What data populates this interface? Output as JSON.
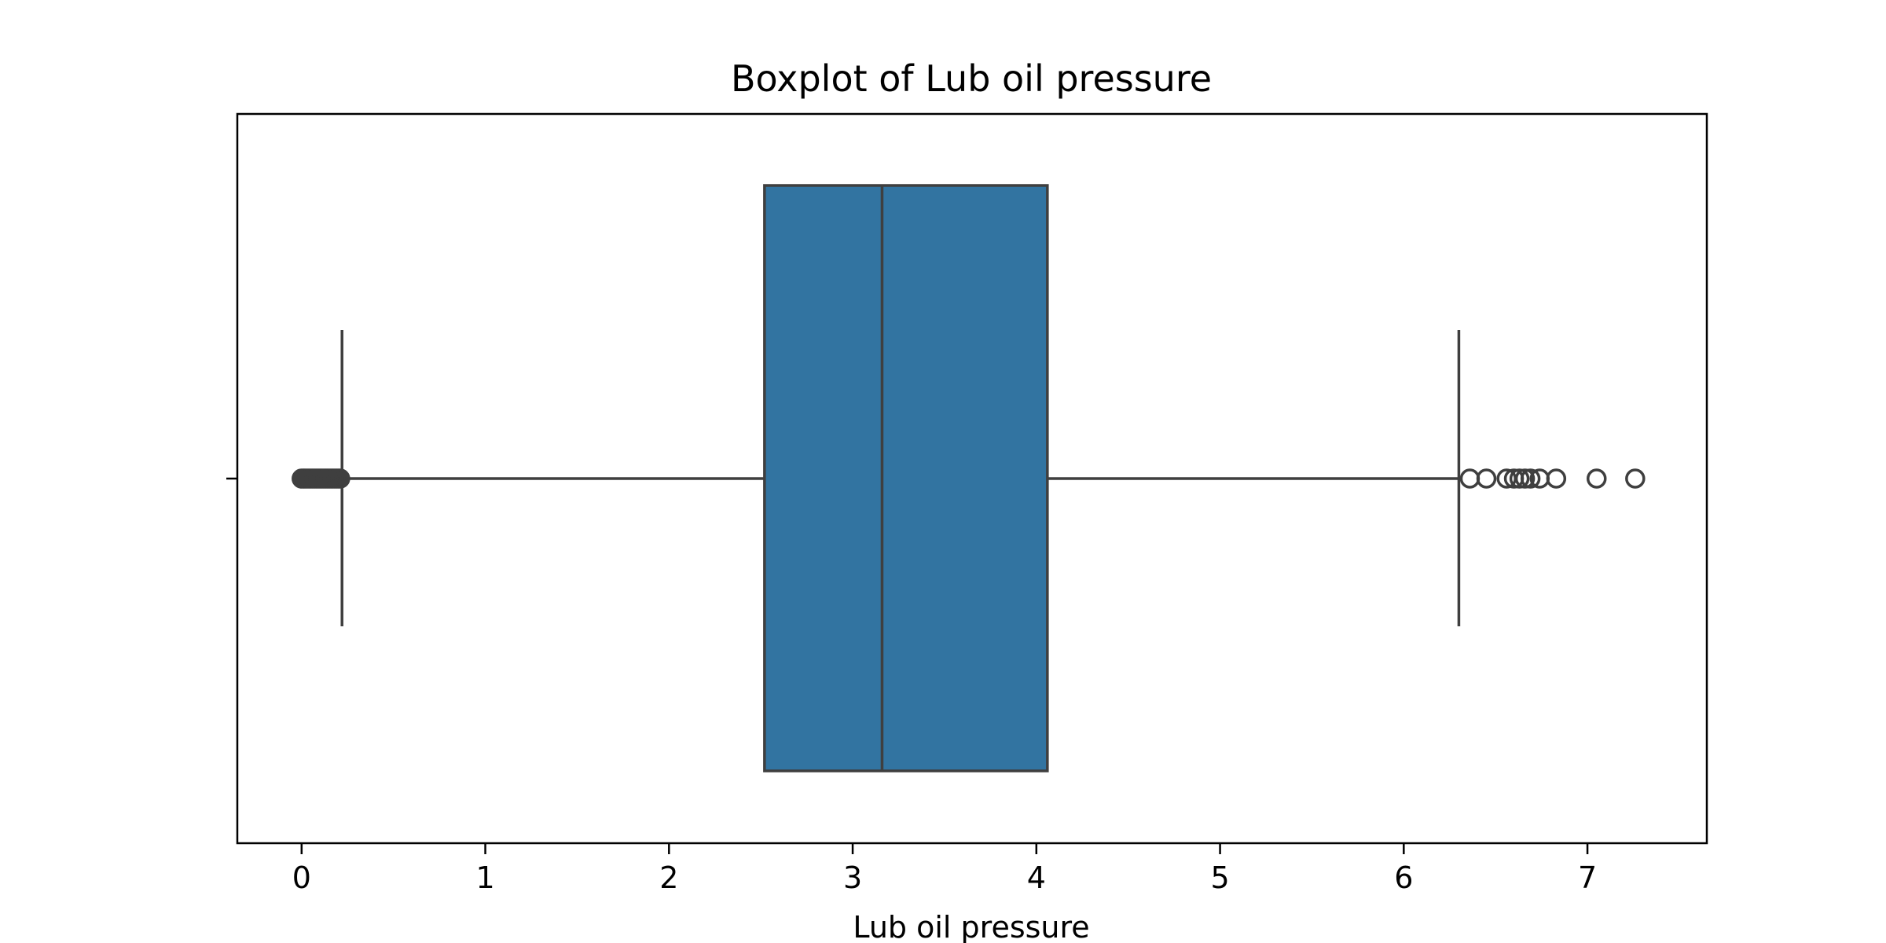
{
  "chart_data": {
    "type": "boxplot",
    "title": "Boxplot of Lub oil pressure",
    "xlabel": "Lub oil pressure",
    "ylabel": "",
    "xlim": [
      -0.35,
      7.65
    ],
    "xticks": [
      0,
      1,
      2,
      3,
      4,
      5,
      6,
      7
    ],
    "orientation": "horizontal",
    "grid": false,
    "box": {
      "whisker_low": 0.22,
      "q1": 2.52,
      "median": 3.16,
      "q3": 4.06,
      "whisker_high": 6.3
    },
    "outliers_low": [
      0.0,
      0.01,
      0.02,
      0.03,
      0.04,
      0.05,
      0.06,
      0.07,
      0.08,
      0.09,
      0.1,
      0.11,
      0.12,
      0.13,
      0.14,
      0.15,
      0.16,
      0.17,
      0.18,
      0.19,
      0.2,
      0.21
    ],
    "outliers_high": [
      6.36,
      6.45,
      6.56,
      6.6,
      6.63,
      6.66,
      6.69,
      6.74,
      6.83,
      7.05,
      7.26
    ],
    "colors": {
      "box_fill": "#3274a1",
      "line": "#3f3f3f",
      "frame": "#000000"
    }
  }
}
